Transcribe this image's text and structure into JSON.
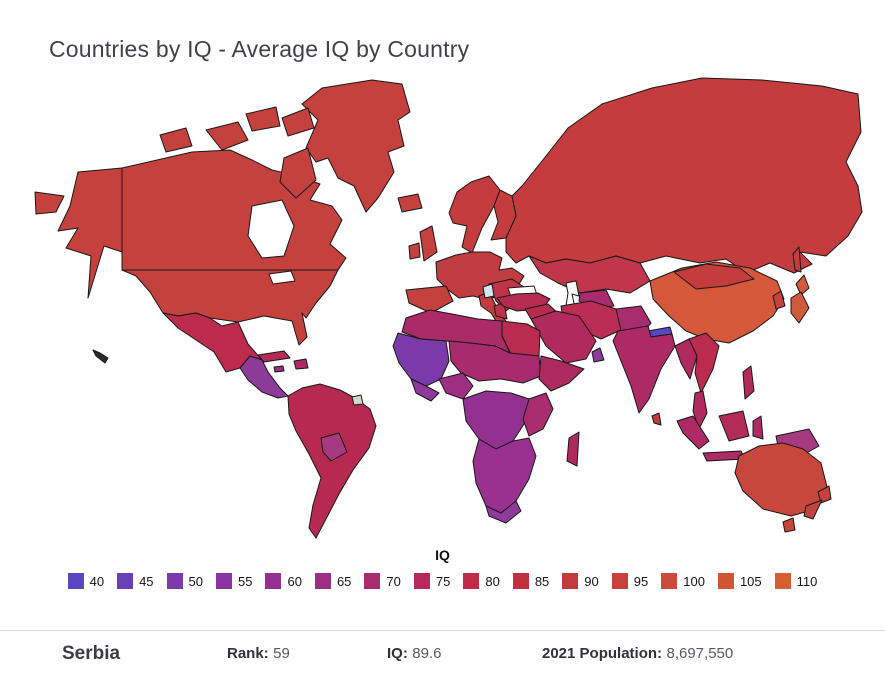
{
  "page": {
    "title": "Countries by IQ - Average IQ by Country"
  },
  "legend": {
    "label": "IQ",
    "items": [
      {
        "value": "40",
        "color": "#5a46c1"
      },
      {
        "value": "45",
        "color": "#6b3fb5"
      },
      {
        "value": "50",
        "color": "#7b39aa"
      },
      {
        "value": "55",
        "color": "#8934a0"
      },
      {
        "value": "60",
        "color": "#943090"
      },
      {
        "value": "65",
        "color": "#9e2e81"
      },
      {
        "value": "70",
        "color": "#a92c6e"
      },
      {
        "value": "75",
        "color": "#b52a5a"
      },
      {
        "value": "80",
        "color": "#c02948"
      },
      {
        "value": "85",
        "color": "#c03140"
      },
      {
        "value": "90",
        "color": "#c33a3d"
      },
      {
        "value": "95",
        "color": "#c7423c"
      },
      {
        "value": "100",
        "color": "#cb4a3a"
      },
      {
        "value": "105",
        "color": "#d15437"
      },
      {
        "value": "110",
        "color": "#d75d33"
      }
    ]
  },
  "infobar": {
    "country": "Serbia",
    "rank_label": "Rank:",
    "rank_value": "59",
    "iq_label": "IQ:",
    "iq_value": "89.6",
    "population_label": "2021 Population:",
    "population_value": "8,697,550"
  },
  "map": {
    "selected_country": "Serbia",
    "highlight_color": "#cfe9f5",
    "region_colors": {
      "greenland": "#c5413e",
      "arctic1": "#c5413e",
      "arctic2": "#c5413e",
      "arctic3": "#c5413e",
      "ellesmere": "#c5413e",
      "baffin": "#c5413e",
      "chukotka": "#c5413e",
      "alaska": "#c5413e",
      "canada": "#c5413e",
      "usa": "#c5413e",
      "hawaii": "#2a2a2a",
      "mexico": "#bc2b4e",
      "centralamerica": "#8d3a9b",
      "cuba": "#b52b57",
      "hispaniola": "#ad2a64",
      "jamaica": "#9e2e81",
      "southamerica": "#b72a50",
      "bolivia": "#a63a80",
      "guiana": "#d6d6ca",
      "iceland": "#c5413e",
      "uk": "#c5413e",
      "ireland": "#c5413e",
      "scandinavia": "#c43c3d",
      "finland": "#c43c3d",
      "russia": "#c43c3d",
      "kazakhstan": "#c0364a",
      "stans": "#a82c6d",
      "europe": "#c23d41",
      "spain": "#c5413e",
      "italy": "#c23d41",
      "balkans": "#bf3447",
      "greece": "#bb3148",
      "serbia": "#cfe9f5",
      "turkey": "#b62b51",
      "levant": "#b82b4f",
      "iran": "#bb2e53",
      "saudi": "#b12a5d",
      "oman": "#8d3a9b",
      "afghanpak": "#a92c6e",
      "nepal": "#5a46c1",
      "india": "#ad2a64",
      "srilanka": "#c23d41",
      "china": "#d45839",
      "mongolia": "#c43c3d",
      "korea": "#c5433e",
      "sakhalin": "#c43c3d",
      "japanN": "#d05a3c",
      "japanS": "#d05a3c",
      "myanmar": "#b02a60",
      "indochina": "#bb2b4e",
      "malay": "#b02a60",
      "philippines": "#b52b57",
      "sumatra": "#ad2a64",
      "borneo": "#b52b57",
      "java": "#ad2a64",
      "sulawesi": "#ad2a64",
      "newguinea": "#a63a80",
      "australia": "#c8473d",
      "tasmania": "#c8473d",
      "nzN": "#c5433e",
      "nzS": "#c5433e",
      "northafrica": "#aa2b67",
      "egypt": "#b92b4f",
      "westafrica": "#7b39aa",
      "guineacoast": "#8d3a9b",
      "nigeria": "#9e2e81",
      "sahel": "#a82c6d",
      "horn": "#ad2a5e",
      "centralafrica": "#943090",
      "eastafrica": "#a92c6e",
      "southernafrica": "#9a3190",
      "southafrica": "#8d3a9b",
      "madagascar": "#b02a60"
    }
  },
  "chart_data": {
    "type": "heatmap",
    "subtype": "choropleth-world-map",
    "title": "Countries by IQ - Average IQ by Country",
    "legend_title": "IQ",
    "scale_values": [
      40,
      45,
      50,
      55,
      60,
      65,
      70,
      75,
      80,
      85,
      90,
      95,
      100,
      105,
      110
    ],
    "scale_colors": [
      "#5a46c1",
      "#6b3fb5",
      "#7b39aa",
      "#8934a0",
      "#943090",
      "#9e2e81",
      "#a92c6e",
      "#b52a5a",
      "#c02948",
      "#c03140",
      "#c33a3d",
      "#c7423c",
      "#cb4a3a",
      "#d15437",
      "#d75d33"
    ],
    "legend_position": "bottom",
    "selected_country": {
      "name": "Serbia",
      "rank": 59,
      "iq": 89.6,
      "population_2021": "8,697,550",
      "highlight_color": "#cfe9f5"
    }
  }
}
